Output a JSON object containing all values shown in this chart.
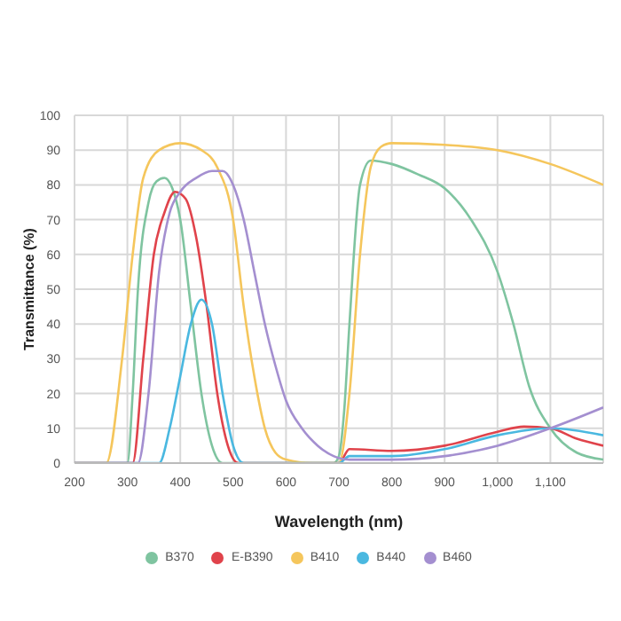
{
  "chart_data": {
    "type": "line",
    "xlabel": "Wavelength (nm)",
    "ylabel": "Transmittance (%)",
    "xlim": [
      200,
      1200
    ],
    "xticks": [
      200,
      300,
      400,
      500,
      600,
      700,
      800,
      900,
      {
        "value": 1000,
        "label": "1,000"
      },
      {
        "value": 1100,
        "label": "1,100"
      },
      {
        "value": 1200,
        "label": null
      }
    ],
    "ylim": [
      0,
      100
    ],
    "yticks": [
      0,
      10,
      20,
      30,
      40,
      50,
      60,
      70,
      80,
      90,
      100
    ],
    "grid": true,
    "legend": "bottom",
    "marker": "none",
    "line_style": "solid",
    "series": [
      {
        "name": "B370",
        "color": "#7fc4a0",
        "x": [
          200,
          300,
          310,
          320,
          340,
          355,
          370,
          385,
          400,
          420,
          440,
          460,
          480,
          500,
          690,
          700,
          710,
          720,
          740,
          760,
          800,
          850,
          900,
          950,
          1000,
          1030,
          1060,
          1100,
          1150,
          1200
        ],
        "values": [
          0,
          0,
          20,
          50,
          75,
          81,
          82,
          79,
          70,
          45,
          20,
          5,
          0,
          0,
          0,
          2,
          15,
          40,
          80,
          87,
          86,
          83,
          79,
          70,
          55,
          40,
          22,
          10,
          3,
          1
        ]
      },
      {
        "name": "E-B390",
        "color": "#e0434b",
        "x": [
          200,
          310,
          330,
          350,
          370,
          390,
          410,
          430,
          450,
          470,
          490,
          510,
          700,
          720,
          800,
          900,
          1000,
          1050,
          1100,
          1150,
          1200
        ],
        "values": [
          0,
          0,
          30,
          60,
          72,
          78,
          76,
          65,
          45,
          20,
          5,
          0,
          0,
          4,
          3.5,
          5,
          9,
          10.5,
          10,
          7,
          5
        ]
      },
      {
        "name": "B410",
        "color": "#f5c65c",
        "x": [
          200,
          260,
          290,
          310,
          330,
          360,
          400,
          440,
          470,
          500,
          520,
          540,
          560,
          580,
          600,
          650,
          700,
          720,
          740,
          760,
          780,
          800,
          900,
          1000,
          1100,
          1200
        ],
        "values": [
          0,
          0,
          30,
          60,
          82,
          90,
          92,
          90,
          85,
          70,
          45,
          25,
          10,
          3,
          1,
          0,
          0,
          20,
          60,
          85,
          91,
          92,
          91.5,
          90,
          86,
          80
        ]
      },
      {
        "name": "B440",
        "color": "#4ab8e0",
        "x": [
          200,
          360,
          380,
          400,
          420,
          440,
          460,
          480,
          500,
          520,
          700,
          720,
          800,
          900,
          1000,
          1100,
          1200
        ],
        "values": [
          0,
          0,
          10,
          25,
          40,
          47,
          40,
          20,
          5,
          0,
          0,
          2,
          2,
          4,
          8,
          10,
          8
        ]
      },
      {
        "name": "B460",
        "color": "#a48fd0",
        "x": [
          200,
          320,
          340,
          360,
          380,
          400,
          430,
          460,
          480,
          500,
          520,
          540,
          560,
          580,
          600,
          630,
          660,
          690,
          720,
          800,
          900,
          1000,
          1100,
          1200
        ],
        "values": [
          0,
          0,
          20,
          55,
          72,
          78,
          82,
          84,
          84,
          80,
          70,
          55,
          40,
          28,
          18,
          10,
          5,
          2,
          1,
          1,
          2,
          5,
          10,
          16
        ]
      }
    ]
  }
}
